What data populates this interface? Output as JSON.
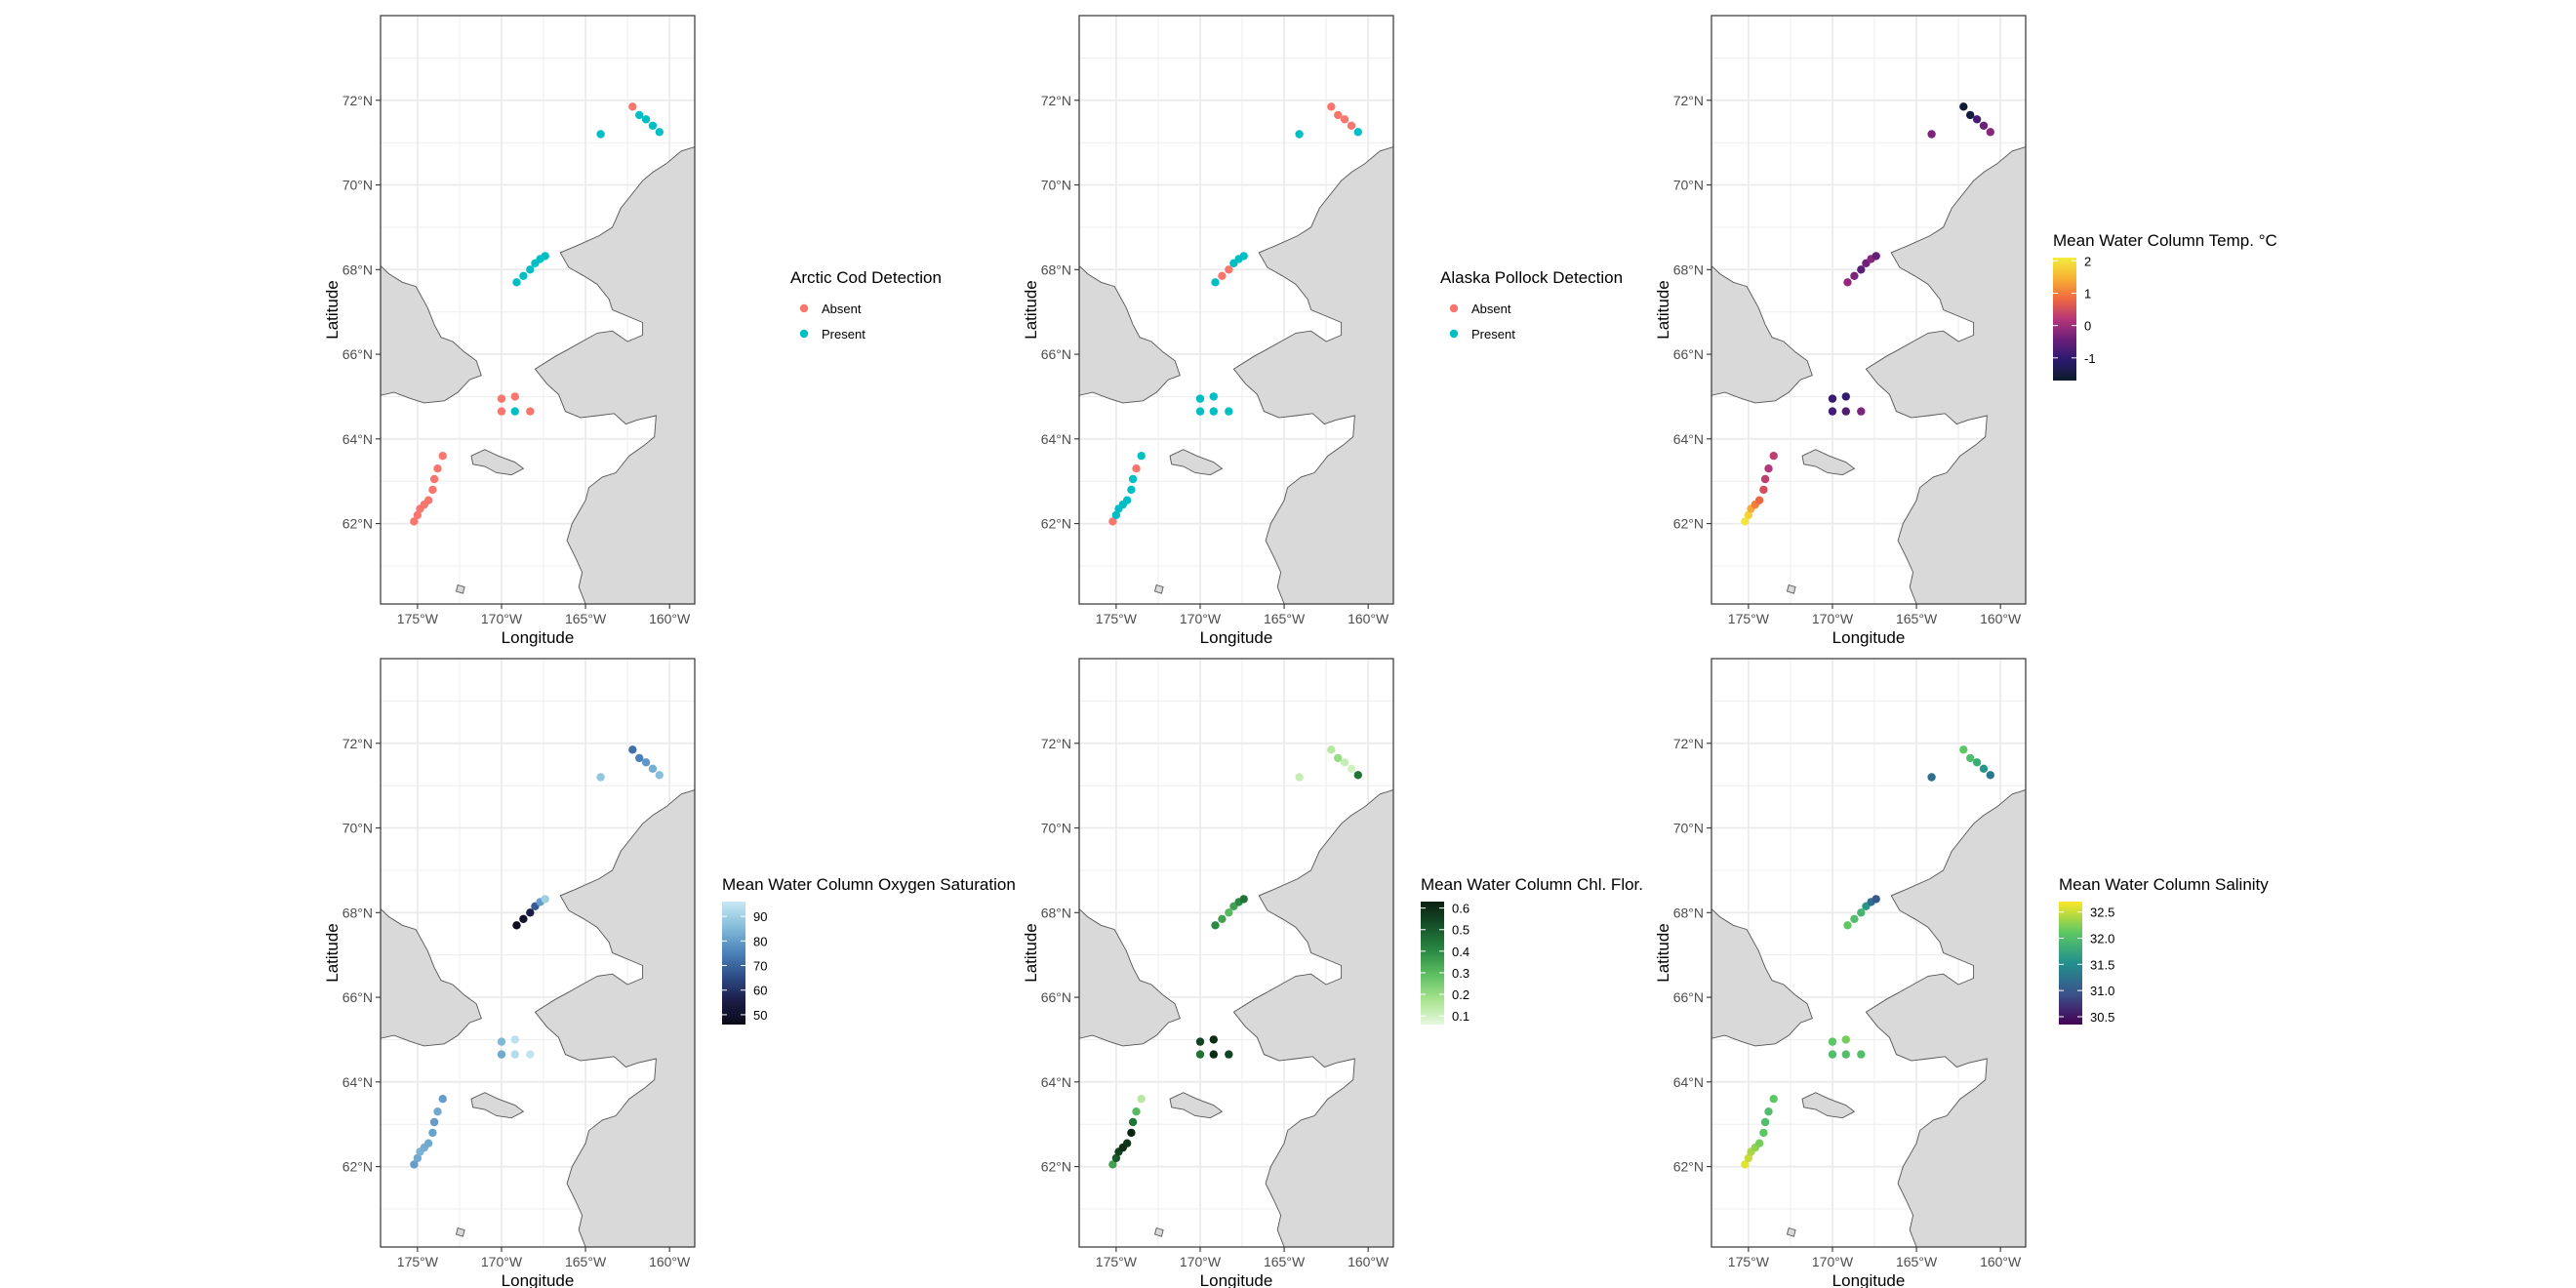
{
  "chart_data": [
    {
      "type": "scatter",
      "map": true,
      "xlabel": "Longitude",
      "ylabel": "Latitude",
      "xlim": [
        -177.2,
        -158.5
      ],
      "ylim": [
        60.1,
        74.0
      ],
      "xticks": [
        "175°W",
        "170°W",
        "165°W",
        "160°W"
      ],
      "xtick_values": [
        -175,
        -170,
        -165,
        -160
      ],
      "yticks": [
        "62°N",
        "64°N",
        "66°N",
        "68°N",
        "70°N",
        "72°N"
      ],
      "ytick_values": [
        62,
        64,
        66,
        68,
        70,
        72
      ],
      "grid": true,
      "legend": {
        "kind": "discrete",
        "title": "Arctic Cod Detection",
        "entries": [
          {
            "label": "Absent",
            "color": "#F8766D"
          },
          {
            "label": "Present",
            "color": "#00BFC4"
          }
        ]
      },
      "points": [
        [
          -175.2,
          62.05,
          0
        ],
        [
          -175.0,
          62.2,
          0
        ],
        [
          -174.85,
          62.35,
          0
        ],
        [
          -174.6,
          62.45,
          0
        ],
        [
          -174.35,
          62.55,
          0
        ],
        [
          -174.1,
          62.8,
          0
        ],
        [
          -174.0,
          63.05,
          0
        ],
        [
          -173.8,
          63.3,
          0
        ],
        [
          -173.5,
          63.6,
          0
        ],
        [
          -170.0,
          64.65,
          0
        ],
        [
          -170.0,
          64.95,
          0
        ],
        [
          -169.2,
          65.0,
          0
        ],
        [
          -168.3,
          64.65,
          0
        ],
        [
          -169.2,
          64.65,
          1
        ],
        [
          -164.1,
          71.2,
          1
        ],
        [
          -162.2,
          71.85,
          0
        ],
        [
          -161.8,
          71.65,
          1
        ],
        [
          -161.4,
          71.55,
          1
        ],
        [
          -161.0,
          71.4,
          1
        ],
        [
          -160.6,
          71.25,
          1
        ],
        [
          -169.1,
          67.7,
          1
        ],
        [
          -168.7,
          67.85,
          1
        ],
        [
          -168.3,
          68.0,
          1
        ],
        [
          -168.0,
          68.15,
          1
        ],
        [
          -167.7,
          68.25,
          1
        ],
        [
          -167.4,
          68.32,
          1
        ]
      ]
    },
    {
      "type": "scatter",
      "map": true,
      "xlabel": "Longitude",
      "ylabel": "Latitude",
      "xlim": [
        -177.2,
        -158.5
      ],
      "ylim": [
        60.1,
        74.0
      ],
      "xticks": [
        "175°W",
        "170°W",
        "165°W",
        "160°W"
      ],
      "xtick_values": [
        -175,
        -170,
        -165,
        -160
      ],
      "yticks": [
        "62°N",
        "64°N",
        "66°N",
        "68°N",
        "70°N",
        "72°N"
      ],
      "ytick_values": [
        62,
        64,
        66,
        68,
        70,
        72
      ],
      "grid": true,
      "legend": {
        "kind": "discrete",
        "title": "Alaska Pollock Detection",
        "entries": [
          {
            "label": "Absent",
            "color": "#F8766D"
          },
          {
            "label": "Present",
            "color": "#00BFC4"
          }
        ]
      },
      "points": [
        [
          -175.2,
          62.05,
          0
        ],
        [
          -175.0,
          62.2,
          1
        ],
        [
          -174.85,
          62.35,
          1
        ],
        [
          -174.6,
          62.45,
          1
        ],
        [
          -174.35,
          62.55,
          1
        ],
        [
          -174.1,
          62.8,
          1
        ],
        [
          -174.0,
          63.05,
          1
        ],
        [
          -173.8,
          63.3,
          0
        ],
        [
          -173.5,
          63.6,
          1
        ],
        [
          -170.0,
          64.65,
          1
        ],
        [
          -170.0,
          64.95,
          1
        ],
        [
          -169.2,
          65.0,
          1
        ],
        [
          -168.3,
          64.65,
          1
        ],
        [
          -169.2,
          64.65,
          1
        ],
        [
          -164.1,
          71.2,
          1
        ],
        [
          -162.2,
          71.85,
          0
        ],
        [
          -161.8,
          71.65,
          0
        ],
        [
          -161.4,
          71.55,
          0
        ],
        [
          -161.0,
          71.4,
          0
        ],
        [
          -160.6,
          71.25,
          1
        ],
        [
          -169.1,
          67.7,
          1
        ],
        [
          -168.7,
          67.85,
          0
        ],
        [
          -168.3,
          68.0,
          0
        ],
        [
          -168.0,
          68.15,
          1
        ],
        [
          -167.7,
          68.25,
          1
        ],
        [
          -167.4,
          68.32,
          1
        ]
      ]
    },
    {
      "type": "scatter",
      "map": true,
      "xlabel": "Longitude",
      "ylabel": "Latitude",
      "xlim": [
        -177.2,
        -158.5
      ],
      "ylim": [
        60.1,
        74.0
      ],
      "xticks": [
        "175°W",
        "170°W",
        "165°W",
        "160°W"
      ],
      "xtick_values": [
        -175,
        -170,
        -165,
        -160
      ],
      "yticks": [
        "62°N",
        "64°N",
        "66°N",
        "68°N",
        "70°N",
        "72°N"
      ],
      "ytick_values": [
        62,
        64,
        66,
        68,
        70,
        72
      ],
      "grid": true,
      "legend": {
        "kind": "continuous",
        "title": "Mean Water Column Temp. °C",
        "min": -1.7,
        "max": 2.1,
        "breaks": [
          2,
          1,
          0,
          -1
        ],
        "break_labels": [
          "2",
          "1",
          "0",
          "-1"
        ],
        "colors": [
          "#0d1b2a",
          "#2a1a6e",
          "#6a1f7a",
          "#b53679",
          "#f06a3f",
          "#f6b133",
          "#f2ed3c"
        ]
      },
      "points": [
        [
          -175.2,
          62.05,
          2.0
        ],
        [
          -175.0,
          62.2,
          1.8
        ],
        [
          -174.85,
          62.35,
          1.4
        ],
        [
          -174.6,
          62.45,
          1.0
        ],
        [
          -174.35,
          62.55,
          0.8
        ],
        [
          -174.1,
          62.8,
          0.5
        ],
        [
          -174.0,
          63.05,
          0.3
        ],
        [
          -173.8,
          63.3,
          0.2
        ],
        [
          -173.5,
          63.6,
          0.3
        ],
        [
          -170.0,
          64.65,
          -0.8
        ],
        [
          -170.0,
          64.95,
          -0.9
        ],
        [
          -169.2,
          65.0,
          -1.0
        ],
        [
          -168.3,
          64.65,
          -0.3
        ],
        [
          -169.2,
          64.65,
          -0.7
        ],
        [
          -164.1,
          71.2,
          -0.3
        ],
        [
          -162.2,
          71.85,
          -1.6
        ],
        [
          -161.8,
          71.65,
          -1.5
        ],
        [
          -161.4,
          71.55,
          -0.8
        ],
        [
          -161.0,
          71.4,
          -0.4
        ],
        [
          -160.6,
          71.25,
          -0.2
        ],
        [
          -169.1,
          67.7,
          -0.1
        ],
        [
          -168.7,
          67.85,
          -0.3
        ],
        [
          -168.3,
          68.0,
          -0.6
        ],
        [
          -168.0,
          68.15,
          -0.4
        ],
        [
          -167.7,
          68.25,
          -0.2
        ],
        [
          -167.4,
          68.32,
          -0.5
        ]
      ]
    },
    {
      "type": "scatter",
      "map": true,
      "xlabel": "Longitude",
      "ylabel": "Latitude",
      "xlim": [
        -177.2,
        -158.5
      ],
      "ylim": [
        60.1,
        74.0
      ],
      "xticks": [
        "175°W",
        "170°W",
        "165°W",
        "160°W"
      ],
      "xtick_values": [
        -175,
        -170,
        -165,
        -160
      ],
      "yticks": [
        "62°N",
        "64°N",
        "66°N",
        "68°N",
        "70°N",
        "72°N"
      ],
      "ytick_values": [
        62,
        64,
        66,
        68,
        70,
        72
      ],
      "grid": true,
      "legend": {
        "kind": "continuous",
        "title": "Mean Water Column Oxygen Saturation",
        "min": 46,
        "max": 96,
        "breaks": [
          90,
          80,
          70,
          60,
          50
        ],
        "break_labels": [
          "90",
          "80",
          "70",
          "60",
          "50"
        ],
        "colors": [
          "#0a0a16",
          "#1c1e4a",
          "#2f4f8a",
          "#4f86bd",
          "#86bedb",
          "#c8e9f2"
        ]
      },
      "points": [
        [
          -175.2,
          62.05,
          80
        ],
        [
          -175.0,
          62.2,
          82
        ],
        [
          -174.85,
          62.35,
          84
        ],
        [
          -174.6,
          62.45,
          83
        ],
        [
          -174.35,
          62.55,
          82
        ],
        [
          -174.1,
          62.8,
          81
        ],
        [
          -174.0,
          63.05,
          80
        ],
        [
          -173.8,
          63.3,
          82
        ],
        [
          -173.5,
          63.6,
          80
        ],
        [
          -170.0,
          64.65,
          82
        ],
        [
          -170.0,
          64.95,
          85
        ],
        [
          -169.2,
          65.0,
          94
        ],
        [
          -168.3,
          64.65,
          95
        ],
        [
          -169.2,
          64.65,
          93
        ],
        [
          -164.1,
          71.2,
          88
        ],
        [
          -162.2,
          71.85,
          72
        ],
        [
          -161.8,
          71.65,
          75
        ],
        [
          -161.4,
          71.55,
          79
        ],
        [
          -161.0,
          71.4,
          83
        ],
        [
          -160.6,
          71.25,
          86
        ],
        [
          -169.1,
          67.7,
          48
        ],
        [
          -168.7,
          67.85,
          50
        ],
        [
          -168.3,
          68.0,
          55
        ],
        [
          -168.0,
          68.15,
          68
        ],
        [
          -167.7,
          68.25,
          80
        ],
        [
          -167.4,
          68.32,
          90
        ]
      ]
    },
    {
      "type": "scatter",
      "map": true,
      "xlabel": "Longitude",
      "ylabel": "Latitude",
      "xlim": [
        -177.2,
        -158.5
      ],
      "ylim": [
        60.1,
        74.0
      ],
      "xticks": [
        "175°W",
        "170°W",
        "165°W",
        "160°W"
      ],
      "xtick_values": [
        -175,
        -170,
        -165,
        -160
      ],
      "yticks": [
        "62°N",
        "64°N",
        "66°N",
        "68°N",
        "70°N",
        "72°N"
      ],
      "ytick_values": [
        62,
        64,
        66,
        68,
        70,
        72
      ],
      "grid": true,
      "legend": {
        "kind": "continuous",
        "title": "Mean Water Column Chl. Flor.",
        "min": 0.06,
        "max": 0.63,
        "breaks": [
          0.6,
          0.5,
          0.4,
          0.3,
          0.2,
          0.1
        ],
        "break_labels": [
          "0.6",
          "0.5",
          "0.4",
          "0.3",
          "0.2",
          "0.1"
        ],
        "colors": [
          "#e6f8df",
          "#a9e48f",
          "#5fbf63",
          "#2a8a43",
          "#16532a",
          "#0a1f10"
        ]
      },
      "points": [
        [
          -175.2,
          62.05,
          0.35
        ],
        [
          -175.0,
          62.2,
          0.5
        ],
        [
          -174.85,
          62.35,
          0.55
        ],
        [
          -174.6,
          62.45,
          0.6
        ],
        [
          -174.35,
          62.55,
          0.58
        ],
        [
          -174.1,
          62.8,
          0.62
        ],
        [
          -174.0,
          63.05,
          0.45
        ],
        [
          -173.8,
          63.3,
          0.3
        ],
        [
          -173.5,
          63.6,
          0.15
        ],
        [
          -170.0,
          64.65,
          0.45
        ],
        [
          -170.0,
          64.95,
          0.55
        ],
        [
          -169.2,
          65.0,
          0.6
        ],
        [
          -168.3,
          64.65,
          0.55
        ],
        [
          -169.2,
          64.65,
          0.6
        ],
        [
          -164.1,
          71.2,
          0.12
        ],
        [
          -162.2,
          71.85,
          0.15
        ],
        [
          -161.8,
          71.65,
          0.2
        ],
        [
          -161.4,
          71.55,
          0.12
        ],
        [
          -161.0,
          71.4,
          0.1
        ],
        [
          -160.6,
          71.25,
          0.45
        ],
        [
          -169.1,
          67.7,
          0.4
        ],
        [
          -168.7,
          67.85,
          0.35
        ],
        [
          -168.3,
          68.0,
          0.3
        ],
        [
          -168.0,
          68.15,
          0.35
        ],
        [
          -167.7,
          68.25,
          0.4
        ],
        [
          -167.4,
          68.32,
          0.45
        ]
      ]
    },
    {
      "type": "scatter",
      "map": true,
      "xlabel": "Longitude",
      "ylabel": "Latitude",
      "xlim": [
        -177.2,
        -158.5
      ],
      "ylim": [
        60.1,
        74.0
      ],
      "xticks": [
        "175°W",
        "170°W",
        "165°W",
        "160°W"
      ],
      "xtick_values": [
        -175,
        -170,
        -165,
        -160
      ],
      "yticks": [
        "62°N",
        "64°N",
        "66°N",
        "68°N",
        "70°N",
        "72°N"
      ],
      "ytick_values": [
        62,
        64,
        66,
        68,
        70,
        72
      ],
      "grid": true,
      "legend": {
        "kind": "continuous",
        "title": "Mean Water Column Salinity",
        "min": 30.35,
        "max": 32.7,
        "breaks": [
          32.5,
          32.0,
          31.5,
          31.0,
          30.5
        ],
        "break_labels": [
          "32.5",
          "32.0",
          "31.5",
          "31.0",
          "30.5"
        ],
        "colors": [
          "#440154",
          "#3b528b",
          "#21908d",
          "#5dc863",
          "#fde725"
        ]
      },
      "points": [
        [
          -175.2,
          62.05,
          32.6
        ],
        [
          -175.0,
          62.2,
          32.5
        ],
        [
          -174.85,
          62.35,
          32.4
        ],
        [
          -174.6,
          62.45,
          32.3
        ],
        [
          -174.35,
          62.55,
          32.2
        ],
        [
          -174.1,
          62.8,
          32.1
        ],
        [
          -174.0,
          63.05,
          32.0
        ],
        [
          -173.8,
          63.3,
          32.0
        ],
        [
          -173.5,
          63.6,
          32.1
        ],
        [
          -170.0,
          64.65,
          32.0
        ],
        [
          -170.0,
          64.95,
          32.1
        ],
        [
          -169.2,
          65.0,
          32.2
        ],
        [
          -168.3,
          64.65,
          32.0
        ],
        [
          -169.2,
          64.65,
          32.0
        ],
        [
          -164.1,
          71.2,
          31.2
        ],
        [
          -162.2,
          71.85,
          32.1
        ],
        [
          -161.8,
          71.65,
          32.0
        ],
        [
          -161.4,
          71.55,
          31.8
        ],
        [
          -161.0,
          71.4,
          31.6
        ],
        [
          -160.6,
          71.25,
          31.3
        ],
        [
          -169.1,
          67.7,
          32.1
        ],
        [
          -168.7,
          67.85,
          32.0
        ],
        [
          -168.3,
          68.0,
          31.9
        ],
        [
          -168.0,
          68.15,
          31.6
        ],
        [
          -167.7,
          68.25,
          31.2
        ],
        [
          -167.4,
          68.32,
          31.0
        ]
      ]
    }
  ],
  "colors": {
    "land": "#d9d9d9",
    "land_border": "#555555",
    "grid": "#ebebeb",
    "panel_border": "#333333"
  }
}
